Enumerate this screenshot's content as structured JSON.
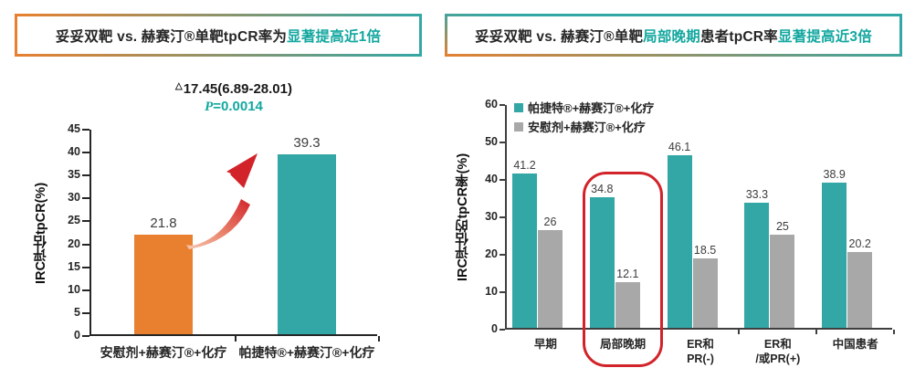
{
  "colors": {
    "teal": "#33A7A6",
    "orange": "#E8802F",
    "gray": "#A8A8A8",
    "red": "#D2232A",
    "highlight_text": "#13A79F"
  },
  "left_panel": {
    "title": {
      "part1": "妥妥双靶 vs. 赫赛汀®单靶tpCR率为",
      "highlight": "显著提高近1倍"
    },
    "annotation": {
      "delta_symbol": "△",
      "delta_text": "17.45(6.89-28.01)",
      "p_symbol": "P",
      "p_text": "=0.0014"
    }
  },
  "right_panel": {
    "title": {
      "part1": "妥妥双靶 vs. 赫赛汀®单靶",
      "highlight1": "局部晚期",
      "part2": "患者tpCR率",
      "highlight2": "显著提高近3倍"
    }
  },
  "chart_data": [
    {
      "type": "bar",
      "title": "妥妥双靶 vs. 赫赛汀®单靶tpCR率为显著提高近1倍",
      "categories": [
        "安慰剂+赫赛汀®+化疗",
        "帕捷特®+赫赛汀®+化疗"
      ],
      "values": [
        21.8,
        39.3
      ],
      "bar_colors": [
        "#E8802F",
        "#33A7A6"
      ],
      "ylabel": "IRC评估tpCR(%)",
      "ylim": [
        0,
        45
      ],
      "ytick_step": 5,
      "grid": false,
      "annotation": "△17.45(6.89-28.01)  P=0.0014"
    },
    {
      "type": "bar",
      "title": "妥妥双靶 vs. 赫赛汀®单靶局部晚期患者tpCR率显著提高近3倍",
      "categories": [
        "早期",
        "局部晚期",
        "ER和\nPR(-)",
        "ER和\n/或PR(+)",
        "中国患者"
      ],
      "series": [
        {
          "name": "帕捷特®+赫赛汀®+化疗",
          "color": "#33A7A6",
          "values": [
            41.2,
            34.8,
            46.1,
            33.3,
            38.9
          ]
        },
        {
          "name": "安慰剂+赫赛汀®+化疗",
          "color": "#A8A8A8",
          "values": [
            26,
            12.1,
            18.5,
            25,
            20.2
          ]
        }
      ],
      "ylabel": "IRC评估的tpCR率(%)",
      "ylim": [
        0,
        60
      ],
      "ytick_step": 10,
      "grid": false,
      "legend_position": "top-left-inside",
      "highlighted_category": "局部晚期"
    }
  ]
}
